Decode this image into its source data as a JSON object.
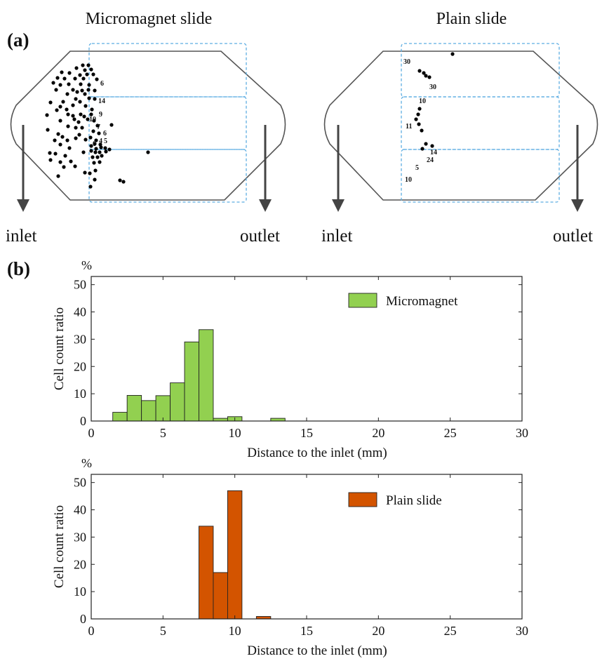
{
  "panel_a": {
    "label": "(a)",
    "slides": [
      {
        "title": "Micromagnet  slide",
        "inlet": "inlet",
        "outlet": "outlet",
        "zone_numbers": [
          "6",
          "14",
          "9",
          "10",
          "7",
          "6",
          "5",
          "4",
          "6"
        ]
      },
      {
        "title": "Plain slide",
        "inlet": "inlet",
        "outlet": "outlet",
        "zone_numbers": [
          "30",
          "30",
          "10",
          "11",
          "14",
          "24",
          "5",
          "10"
        ]
      }
    ]
  },
  "panel_b": {
    "label": "(b)"
  },
  "colors": {
    "micromagnet": "#92D050",
    "plain": "#D35400",
    "dashed_region": "#5DADE2"
  },
  "chart_data": [
    {
      "type": "bar",
      "title": "",
      "unit": "%",
      "xlabel": "Distance to the inlet (mm)",
      "ylabel": "Cell count ratio",
      "xlim": [
        0,
        30
      ],
      "ylim": [
        0,
        53
      ],
      "xticks": [
        "0",
        "5",
        "10",
        "15",
        "20",
        "25",
        "30"
      ],
      "yticks": [
        "0",
        "10",
        "20",
        "30",
        "40",
        "50"
      ],
      "legend": "top-right",
      "series": [
        {
          "name": "Micromagnet",
          "color": "#92D050",
          "bin_width": 1,
          "bin_left": [
            1.5,
            2.5,
            3.5,
            4.5,
            5.5,
            6.5,
            7.5,
            8.5,
            9.5,
            12.5
          ],
          "values": [
            3.2,
            9.4,
            7.5,
            9.3,
            14.0,
            29.0,
            33.5,
            1.0,
            1.6,
            1.0
          ]
        }
      ]
    },
    {
      "type": "bar",
      "title": "",
      "unit": "%",
      "xlabel": "Distance to the inlet (mm)",
      "ylabel": "Cell count ratio",
      "xlim": [
        0,
        30
      ],
      "ylim": [
        0,
        53
      ],
      "xticks": [
        "0",
        "5",
        "10",
        "15",
        "20",
        "25",
        "30"
      ],
      "yticks": [
        "0",
        "10",
        "20",
        "30",
        "40",
        "50"
      ],
      "legend": "top-right",
      "series": [
        {
          "name": "Plain slide",
          "color": "#D35400",
          "bin_width": 1,
          "bin_left": [
            7.5,
            8.5,
            9.5,
            11.5
          ],
          "values": [
            34.0,
            17.0,
            47.0,
            0.9
          ]
        }
      ]
    }
  ]
}
